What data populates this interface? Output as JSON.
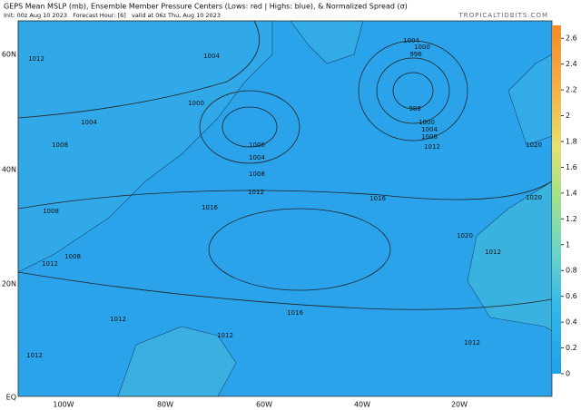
{
  "header": {
    "title": "GEPS Mean MSLP (mb), Ensemble Member Pressure Centers (Lows: red | Highs: blue), & Normalized Spread (σ)",
    "subtitle": "Init: 00z Aug 10 2023   Forecast Hour: [6]   valid at 06z Thu, Aug 10 2023",
    "watermark": "TROPICALTIDBITS.COM"
  },
  "map": {
    "lat_labels": [
      "60N",
      "40N",
      "20N",
      "EQ"
    ],
    "lon_labels": [
      "100W",
      "80W",
      "60W",
      "40W",
      "20W"
    ],
    "isobar_labels": [
      "1012",
      "1004",
      "1000",
      "1004",
      "1008",
      "1000",
      "1004",
      "1008",
      "1012",
      "1016",
      "1016",
      "1008",
      "1008",
      "1012",
      "1020",
      "1016",
      "1012",
      "1012",
      "1012",
      "1012",
      "1004",
      "1000",
      "996",
      "988",
      "1000",
      "1004",
      "1008",
      "1012",
      "1020",
      "1020",
      "1012"
    ]
  },
  "colorbar": {
    "ylim": [
      0,
      2.7
    ],
    "ticks": [
      0,
      0.2,
      0.4,
      0.6,
      0.8,
      1,
      1.2,
      1.4,
      1.6,
      1.8,
      2,
      2.2,
      2.4,
      2.6
    ]
  }
}
